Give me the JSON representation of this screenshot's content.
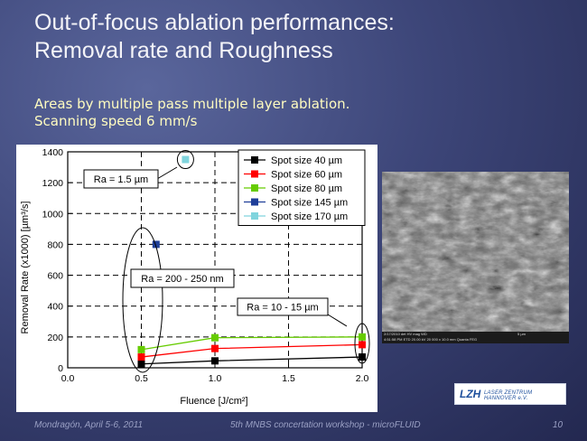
{
  "slide": {
    "title_line1": "Out-of-focus ablation performances:",
    "title_line2": "Removal rate and Roughness",
    "subtitle_line1": "Areas by multiple pass  multiple layer ablation.",
    "subtitle_line2": "Scanning speed 6 mm/s",
    "footer_left": "Mondragón, April 5-6, 2011",
    "footer_mid": "5th MNBS concertation workshop - microFLUID",
    "footer_right": "10",
    "logo_mark": "LZH",
    "logo_text": "LASER ZENTRUM HANNOVER e.V."
  },
  "chart_data": {
    "type": "line",
    "xlabel": "Fluence [J/cm²]",
    "ylabel": "Removal Rate (x1000) [µm³/s]",
    "xlim": [
      0.0,
      2.0
    ],
    "ylim": [
      0,
      1400
    ],
    "xticks": [
      "0.0",
      "0.5",
      "1.0",
      "1.5",
      "2.0"
    ],
    "yticks": [
      "0",
      "200",
      "400",
      "600",
      "800",
      "1000",
      "1200",
      "1400"
    ],
    "grid": true,
    "legend_position": "top-right",
    "series": [
      {
        "name": "Spot size 40 µm",
        "color": "#000000",
        "marker": "square",
        "points": [
          [
            0.5,
            25
          ],
          [
            1.0,
            45
          ],
          [
            2.0,
            70
          ]
        ]
      },
      {
        "name": "Spot size 60 µm",
        "color": "#ff0000",
        "marker": "square",
        "points": [
          [
            0.5,
            70
          ],
          [
            1.0,
            125
          ],
          [
            2.0,
            150
          ]
        ]
      },
      {
        "name": "Spot size 80 µm",
        "color": "#66cc00",
        "marker": "square",
        "points": [
          [
            0.5,
            118
          ],
          [
            1.0,
            195
          ],
          [
            2.0,
            200
          ]
        ]
      },
      {
        "name": "Spot size 145 µm",
        "color": "#1f3f99",
        "marker": "square",
        "points": [
          [
            0.6,
            800
          ]
        ]
      },
      {
        "name": "Spot size 170 µm",
        "color": "#80d4dd",
        "marker": "square",
        "points": [
          [
            0.8,
            1350
          ]
        ]
      }
    ],
    "annotations": [
      {
        "text": "Ra = 1.5 µm"
      },
      {
        "text": "Ra = 200 - 250 nm"
      },
      {
        "text": "Ra = 10 - 15 µm"
      }
    ]
  },
  "sem_image": {
    "info_left": "2/17/2010  det   HV    mag  WD",
    "info_right": "5 µm",
    "info_bottom": "4:51:58 PM  ETD  20.00 kV  20 000 x  10.0 mm   Quanta FEG"
  }
}
